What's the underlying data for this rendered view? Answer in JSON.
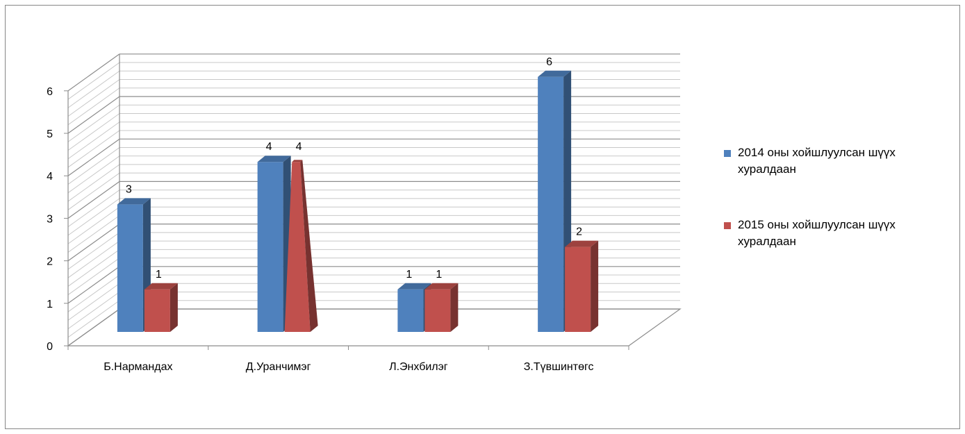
{
  "chart_data": {
    "type": "bar",
    "categories": [
      "Б.Нармандах",
      "Д.Уранчимэг",
      "Л.Энхбилэг",
      "З.Түвшинтөгс"
    ],
    "series": [
      {
        "name": "2014 оны хойшлуулсан шүүх хуралдаан",
        "values": [
          3,
          4,
          1,
          6
        ],
        "color": "#4F81BD"
      },
      {
        "name": "2015 оны хойшлуулсан шүүх хуралдаан",
        "values": [
          1,
          4,
          1,
          2
        ],
        "color": "#C0504D"
      }
    ],
    "ylim": [
      0,
      6
    ],
    "yticks": [
      "0",
      "1",
      "2",
      "3",
      "4",
      "5",
      "6"
    ],
    "grid": true,
    "legend_position": "right",
    "data_labels": true,
    "style": "3d"
  }
}
